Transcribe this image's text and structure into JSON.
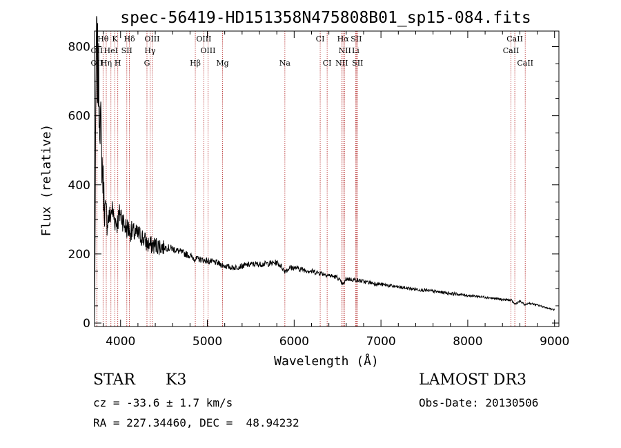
{
  "chart_data": {
    "type": "line",
    "title": "spec-56419-HD151358N475808B01_sp15-084.fits",
    "xlabel": "Wavelength (Å)",
    "ylabel": "Flux (relative)",
    "xlim": [
      3700,
      9050
    ],
    "ylim": [
      -10,
      845
    ],
    "xticks": [
      4000,
      5000,
      6000,
      7000,
      8000,
      9000
    ],
    "yticks": [
      0,
      200,
      400,
      600,
      800
    ],
    "series": [
      {
        "name": "flux",
        "x": [
          3700,
          3720,
          3740,
          3760,
          3780,
          3800,
          3820,
          3850,
          3880,
          3900,
          3930,
          3960,
          4000,
          4050,
          4100,
          4150,
          4200,
          4250,
          4300,
          4340,
          4400,
          4500,
          4600,
          4700,
          4800,
          4860,
          4900,
          5000,
          5100,
          5200,
          5300,
          5400,
          5500,
          5600,
          5700,
          5800,
          5850,
          5890,
          5950,
          6000,
          6100,
          6200,
          6300,
          6400,
          6500,
          6563,
          6600,
          6700,
          6800,
          7000,
          7200,
          7400,
          7600,
          7800,
          8000,
          8200,
          8400,
          8500,
          8542,
          8600,
          8662,
          8700,
          8800,
          8900,
          9000
        ],
        "y": [
          0,
          800,
          720,
          640,
          500,
          400,
          320,
          300,
          310,
          330,
          300,
          290,
          320,
          280,
          270,
          260,
          255,
          250,
          230,
          225,
          225,
          220,
          215,
          205,
          195,
          185,
          185,
          180,
          175,
          165,
          160,
          165,
          170,
          170,
          172,
          175,
          165,
          150,
          160,
          160,
          155,
          150,
          145,
          138,
          132,
          110,
          128,
          125,
          120,
          112,
          104,
          98,
          92,
          86,
          80,
          75,
          68,
          66,
          55,
          63,
          52,
          58,
          52,
          45,
          38
        ]
      }
    ],
    "lines": [
      {
        "label": "Hθ",
        "x": 3798,
        "row": 0
      },
      {
        "label": "K",
        "x": 3934,
        "row": 0
      },
      {
        "label": "Hδ",
        "x": 4102,
        "row": 0
      },
      {
        "label": "OIII",
        "x": 4363,
        "row": 0
      },
      {
        "label": "OIII",
        "x": 4959,
        "row": 0
      },
      {
        "label": "CI",
        "x": 6300,
        "row": 0
      },
      {
        "label": "Hα",
        "x": 6563,
        "row": 0
      },
      {
        "label": "SII",
        "x": 6716,
        "row": 0
      },
      {
        "label": "CaII",
        "x": 8542,
        "row": 0
      },
      {
        "label": "OII",
        "x": 3727,
        "row": 1
      },
      {
        "label": "HeI",
        "x": 3889,
        "row": 1
      },
      {
        "label": "SII",
        "x": 4072,
        "row": 1
      },
      {
        "label": "Hγ",
        "x": 4340,
        "row": 1
      },
      {
        "label": "OIII",
        "x": 5007,
        "row": 1
      },
      {
        "label": "NII",
        "x": 6583,
        "row": 1
      },
      {
        "label": "Li",
        "x": 6708,
        "row": 1
      },
      {
        "label": "CaII",
        "x": 8498,
        "row": 1
      },
      {
        "label": "OII",
        "x": 3727,
        "row": 2
      },
      {
        "label": "Hη",
        "x": 3835,
        "row": 2
      },
      {
        "label": "H",
        "x": 3968,
        "row": 2
      },
      {
        "label": "G",
        "x": 4304,
        "row": 2
      },
      {
        "label": "Hβ",
        "x": 4861,
        "row": 2
      },
      {
        "label": "Mg",
        "x": 5175,
        "row": 2
      },
      {
        "label": "Na",
        "x": 5893,
        "row": 2
      },
      {
        "label": "CI",
        "x": 6380,
        "row": 2
      },
      {
        "label": "NII",
        "x": 6548,
        "row": 2
      },
      {
        "label": "SII",
        "x": 6731,
        "row": 2
      },
      {
        "label": "CaII",
        "x": 8662,
        "row": 2
      }
    ]
  },
  "info": {
    "object_class": "STAR",
    "subclass": "K3",
    "redshift": "cz = -33.6 ± 1.7 km/s",
    "coords": "RA = 227.34460, DEC =  48.94232",
    "survey": "LAMOST DR3",
    "obs_date": "Obs-Date: 20130506"
  }
}
